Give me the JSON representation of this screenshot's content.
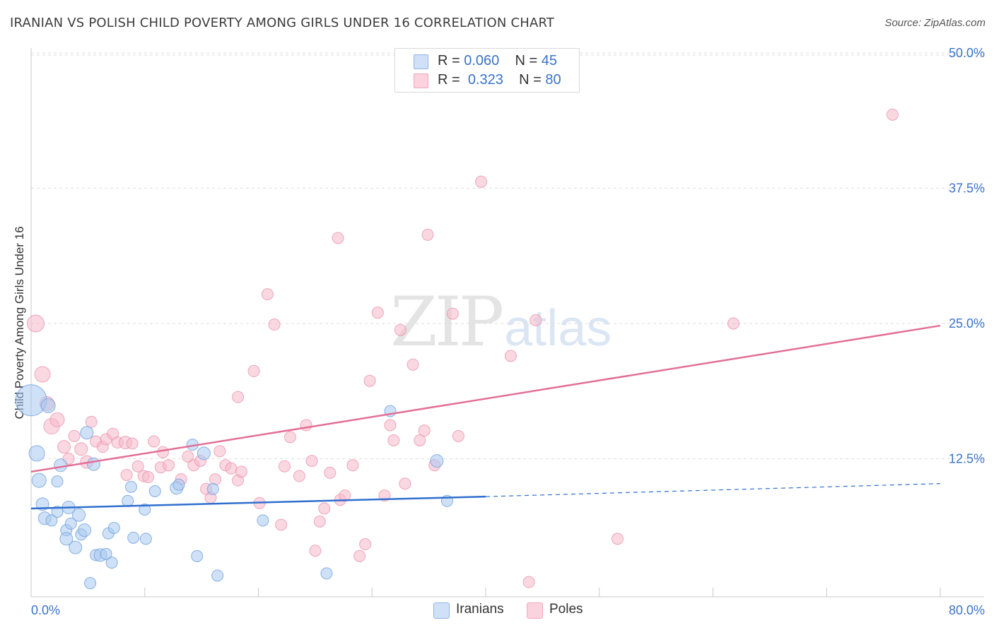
{
  "title": "IRANIAN VS POLISH CHILD POVERTY AMONG GIRLS UNDER 16 CORRELATION CHART",
  "source": "Source: ZipAtlas.com",
  "watermark": {
    "zip": "ZIP",
    "atlas": "atlas"
  },
  "legend_top": [
    {
      "r_label": "R = ",
      "r_value": "0.060",
      "n_label": "N = ",
      "n_value": "45",
      "color": "#a8c8f0"
    },
    {
      "r_label": "R = ",
      "r_value": "0.323",
      "n_label": "N = ",
      "n_value": "80",
      "color": "#f6b8cb"
    }
  ],
  "legend_bottom": [
    {
      "label": "Iranians",
      "color": "#a8c8f0"
    },
    {
      "label": "Poles",
      "color": "#f6b8cb"
    }
  ],
  "colors": {
    "iranians_fill": "#a8c8f0",
    "iranians_stroke": "#6f9fdc",
    "iranians_line": "#2f6fcf",
    "poles_fill": "#f6b8cb",
    "poles_stroke": "#eb92ae",
    "poles_line": "#e36f97",
    "tick_label": "#3a73c8",
    "grid": "#dedede"
  },
  "chart_data": {
    "type": "scatter",
    "title": "IRANIAN VS POLISH CHILD POVERTY AMONG GIRLS UNDER 16 CORRELATION CHART",
    "xlabel": "",
    "ylabel": "Child Poverty Among Girls Under 16",
    "xlim": [
      0,
      80
    ],
    "ylim": [
      0,
      50
    ],
    "x_tick_labels": [
      "0.0%",
      "80.0%"
    ],
    "y_tick_labels": [
      "12.5%",
      "25.0%",
      "37.5%",
      "50.0%"
    ],
    "y_ticks": [
      12.5,
      25.0,
      37.5,
      50.0
    ],
    "grid": "horizontal dashed",
    "legend_position": "top-center",
    "series": [
      {
        "name": "Iranians",
        "trend": {
          "x0": 0,
          "y0": 7.9,
          "x1": 40,
          "y1": 9.0,
          "dashed_to_x": 80,
          "dashed_to_y": 10.2
        },
        "points": [
          [
            0,
            17.9,
            22
          ],
          [
            1.5,
            17.4,
            10
          ],
          [
            0.5,
            13.0,
            11
          ],
          [
            0.7,
            10.5,
            10
          ],
          [
            1.0,
            8.3,
            9
          ],
          [
            1.2,
            7.0,
            9
          ],
          [
            1.8,
            6.8,
            8
          ],
          [
            2.3,
            7.6,
            8
          ],
          [
            2.3,
            10.4,
            8
          ],
          [
            2.6,
            11.9,
            9
          ],
          [
            3.1,
            5.9,
            8
          ],
          [
            3.1,
            5.1,
            9
          ],
          [
            3.3,
            8.0,
            9
          ],
          [
            3.5,
            6.5,
            8
          ],
          [
            3.9,
            4.3,
            9
          ],
          [
            4.2,
            7.3,
            9
          ],
          [
            4.4,
            5.5,
            8
          ],
          [
            4.7,
            5.9,
            9
          ],
          [
            4.9,
            14.9,
            9
          ],
          [
            5.5,
            12.0,
            9
          ],
          [
            5.7,
            3.6,
            8
          ],
          [
            6.1,
            3.6,
            9
          ],
          [
            6.6,
            3.7,
            8
          ],
          [
            6.8,
            5.6,
            8
          ],
          [
            7.1,
            2.9,
            8
          ],
          [
            7.3,
            6.1,
            8
          ],
          [
            8.5,
            8.6,
            8
          ],
          [
            8.8,
            9.9,
            8
          ],
          [
            9.0,
            5.2,
            8
          ],
          [
            10.0,
            7.8,
            8
          ],
          [
            10.1,
            5.1,
            8
          ],
          [
            10.9,
            9.5,
            8
          ],
          [
            12.8,
            9.8,
            9
          ],
          [
            14.2,
            13.8,
            8
          ],
          [
            14.6,
            3.5,
            8
          ],
          [
            15.2,
            13.0,
            9
          ],
          [
            16.0,
            9.7,
            8
          ],
          [
            16.4,
            1.7,
            8
          ],
          [
            13.0,
            10.1,
            8
          ],
          [
            20.4,
            6.8,
            8
          ],
          [
            5.2,
            1.0,
            8
          ],
          [
            26.0,
            1.9,
            8
          ],
          [
            31.6,
            16.9,
            8
          ],
          [
            35.7,
            12.3,
            9
          ],
          [
            36.6,
            8.6,
            8
          ]
        ]
      },
      {
        "name": "Poles",
        "trend": {
          "x0": 0,
          "y0": 11.3,
          "x1": 80,
          "y1": 24.8
        },
        "points": [
          [
            0.4,
            25.0,
            12
          ],
          [
            1.0,
            20.3,
            11
          ],
          [
            1.4,
            17.6,
            10
          ],
          [
            1.8,
            15.5,
            11
          ],
          [
            2.3,
            16.1,
            10
          ],
          [
            2.9,
            13.6,
            9
          ],
          [
            3.3,
            12.5,
            8
          ],
          [
            3.8,
            14.6,
            8
          ],
          [
            4.4,
            13.4,
            9
          ],
          [
            4.9,
            12.2,
            9
          ],
          [
            5.3,
            15.9,
            8
          ],
          [
            5.7,
            14.1,
            8
          ],
          [
            6.3,
            13.6,
            8
          ],
          [
            6.6,
            14.3,
            8
          ],
          [
            7.2,
            14.8,
            8
          ],
          [
            7.6,
            14.0,
            8
          ],
          [
            8.3,
            14.0,
            9
          ],
          [
            8.4,
            11.0,
            8
          ],
          [
            8.9,
            13.9,
            8
          ],
          [
            9.4,
            11.8,
            8
          ],
          [
            9.9,
            10.9,
            8
          ],
          [
            10.3,
            10.8,
            8
          ],
          [
            10.8,
            14.1,
            8
          ],
          [
            11.4,
            11.7,
            8
          ],
          [
            11.6,
            13.1,
            8
          ],
          [
            12.1,
            11.9,
            8
          ],
          [
            13.2,
            10.6,
            8
          ],
          [
            13.8,
            12.7,
            8
          ],
          [
            14.3,
            11.9,
            8
          ],
          [
            14.9,
            12.3,
            8
          ],
          [
            15.4,
            9.7,
            8
          ],
          [
            15.8,
            8.9,
            8
          ],
          [
            16.2,
            10.6,
            8
          ],
          [
            16.6,
            13.2,
            8
          ],
          [
            17.1,
            11.9,
            8
          ],
          [
            17.6,
            11.6,
            8
          ],
          [
            18.2,
            10.5,
            8
          ],
          [
            18.5,
            11.3,
            8
          ],
          [
            19.6,
            20.6,
            8
          ],
          [
            18.2,
            18.2,
            8
          ],
          [
            20.1,
            8.4,
            8
          ],
          [
            20.8,
            27.7,
            8
          ],
          [
            21.4,
            24.9,
            8
          ],
          [
            22.0,
            6.4,
            8
          ],
          [
            22.3,
            11.8,
            8
          ],
          [
            22.8,
            14.5,
            8
          ],
          [
            23.6,
            10.9,
            8
          ],
          [
            24.2,
            15.6,
            8
          ],
          [
            24.7,
            12.3,
            8
          ],
          [
            25.0,
            4.0,
            8
          ],
          [
            25.4,
            6.7,
            8
          ],
          [
            25.8,
            7.9,
            8
          ],
          [
            26.3,
            11.2,
            8
          ],
          [
            27.0,
            32.9,
            8
          ],
          [
            27.2,
            8.7,
            8
          ],
          [
            27.6,
            9.1,
            8
          ],
          [
            28.3,
            11.9,
            8
          ],
          [
            28.9,
            3.5,
            8
          ],
          [
            29.4,
            4.6,
            8
          ],
          [
            29.8,
            19.7,
            8
          ],
          [
            30.5,
            26.0,
            8
          ],
          [
            31.1,
            9.1,
            8
          ],
          [
            31.6,
            15.6,
            8
          ],
          [
            31.9,
            14.2,
            8
          ],
          [
            32.5,
            24.4,
            8
          ],
          [
            32.9,
            10.2,
            8
          ],
          [
            33.6,
            21.2,
            8
          ],
          [
            34.2,
            14.2,
            8
          ],
          [
            34.6,
            15.1,
            8
          ],
          [
            34.9,
            33.2,
            8
          ],
          [
            35.5,
            11.9,
            8
          ],
          [
            37.1,
            25.9,
            8
          ],
          [
            37.6,
            14.6,
            8
          ],
          [
            39.6,
            38.1,
            8
          ],
          [
            42.2,
            22.0,
            8
          ],
          [
            43.8,
            1.1,
            8
          ],
          [
            44.4,
            25.3,
            8
          ],
          [
            51.6,
            5.1,
            8
          ],
          [
            61.8,
            25.0,
            8
          ],
          [
            75.8,
            44.3,
            8
          ]
        ]
      }
    ]
  }
}
